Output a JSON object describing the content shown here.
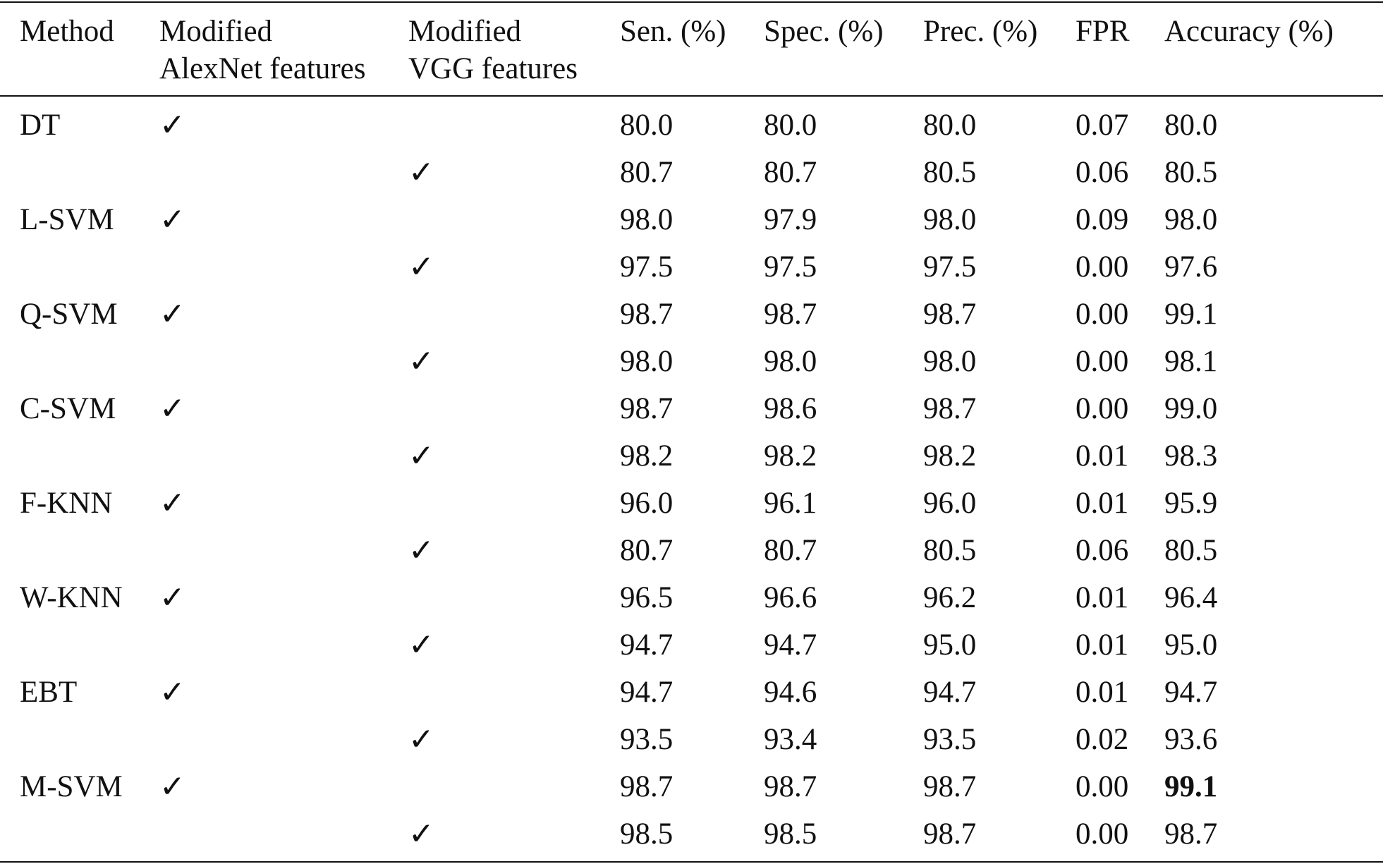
{
  "headers": {
    "method": "Method",
    "alexnet": "Modified\nAlexNet features",
    "vgg": "Modified\nVGG features",
    "sen": "Sen. (%)",
    "spec": "Spec. (%)",
    "prec": "Prec. (%)",
    "fpr": "FPR",
    "accuracy": "Accuracy (%)"
  },
  "check_glyph": "✓",
  "rows": [
    {
      "method": "DT",
      "alexnet": true,
      "vgg": false,
      "sen": "80.0",
      "spec": "80.0",
      "prec": "80.0",
      "fpr": "0.07",
      "accuracy": "80.0",
      "accuracy_bold": false
    },
    {
      "method": "",
      "alexnet": false,
      "vgg": true,
      "sen": "80.7",
      "spec": "80.7",
      "prec": "80.5",
      "fpr": "0.06",
      "accuracy": "80.5",
      "accuracy_bold": false
    },
    {
      "method": "L-SVM",
      "alexnet": true,
      "vgg": false,
      "sen": "98.0",
      "spec": "97.9",
      "prec": "98.0",
      "fpr": "0.09",
      "accuracy": "98.0",
      "accuracy_bold": false
    },
    {
      "method": "",
      "alexnet": false,
      "vgg": true,
      "sen": "97.5",
      "spec": "97.5",
      "prec": "97.5",
      "fpr": "0.00",
      "accuracy": "97.6",
      "accuracy_bold": false
    },
    {
      "method": "Q-SVM",
      "alexnet": true,
      "vgg": false,
      "sen": "98.7",
      "spec": "98.7",
      "prec": "98.7",
      "fpr": "0.00",
      "accuracy": "99.1",
      "accuracy_bold": false
    },
    {
      "method": "",
      "alexnet": false,
      "vgg": true,
      "sen": "98.0",
      "spec": "98.0",
      "prec": "98.0",
      "fpr": "0.00",
      "accuracy": "98.1",
      "accuracy_bold": false
    },
    {
      "method": "C-SVM",
      "alexnet": true,
      "vgg": false,
      "sen": "98.7",
      "spec": "98.6",
      "prec": "98.7",
      "fpr": "0.00",
      "accuracy": "99.0",
      "accuracy_bold": false
    },
    {
      "method": "",
      "alexnet": false,
      "vgg": true,
      "sen": "98.2",
      "spec": "98.2",
      "prec": "98.2",
      "fpr": "0.01",
      "accuracy": "98.3",
      "accuracy_bold": false
    },
    {
      "method": "F-KNN",
      "alexnet": true,
      "vgg": false,
      "sen": "96.0",
      "spec": "96.1",
      "prec": "96.0",
      "fpr": "0.01",
      "accuracy": "95.9",
      "accuracy_bold": false
    },
    {
      "method": "",
      "alexnet": false,
      "vgg": true,
      "sen": "80.7",
      "spec": "80.7",
      "prec": "80.5",
      "fpr": "0.06",
      "accuracy": "80.5",
      "accuracy_bold": false
    },
    {
      "method": "W-KNN",
      "alexnet": true,
      "vgg": false,
      "sen": "96.5",
      "spec": "96.6",
      "prec": "96.2",
      "fpr": "0.01",
      "accuracy": "96.4",
      "accuracy_bold": false
    },
    {
      "method": "",
      "alexnet": false,
      "vgg": true,
      "sen": "94.7",
      "spec": "94.7",
      "prec": "95.0",
      "fpr": "0.01",
      "accuracy": "95.0",
      "accuracy_bold": false
    },
    {
      "method": "EBT",
      "alexnet": true,
      "vgg": false,
      "sen": "94.7",
      "spec": "94.6",
      "prec": "94.7",
      "fpr": "0.01",
      "accuracy": "94.7",
      "accuracy_bold": false
    },
    {
      "method": "",
      "alexnet": false,
      "vgg": true,
      "sen": "93.5",
      "spec": "93.4",
      "prec": "93.5",
      "fpr": "0.02",
      "accuracy": "93.6",
      "accuracy_bold": false
    },
    {
      "method": "M-SVM",
      "alexnet": true,
      "vgg": false,
      "sen": "98.7",
      "spec": "98.7",
      "prec": "98.7",
      "fpr": "0.00",
      "accuracy": "99.1",
      "accuracy_bold": true
    },
    {
      "method": "",
      "alexnet": false,
      "vgg": true,
      "sen": "98.5",
      "spec": "98.5",
      "prec": "98.7",
      "fpr": "0.00",
      "accuracy": "98.7",
      "accuracy_bold": false
    }
  ]
}
